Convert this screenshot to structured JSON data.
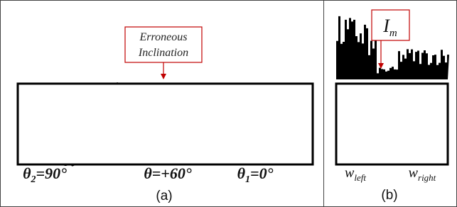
{
  "panels": [
    {
      "label": "(a)",
      "callout": {
        "lines": [
          "Erroneous",
          "Inclination"
        ]
      },
      "angle_labels": [
        {
          "symbol": "θ",
          "sub": "2",
          "text": "=90°"
        },
        {
          "symbol": "θ",
          "text": "=+60°"
        },
        {
          "symbol": "θ",
          "sub": "1",
          "text": "=0°"
        }
      ]
    },
    {
      "label": "(b)",
      "callout": {
        "symbol": "I",
        "sub": "m"
      },
      "window_labels": [
        {
          "symbol": "w",
          "sub": "left"
        },
        {
          "symbol": "w",
          "sub": "right"
        }
      ]
    }
  ]
}
